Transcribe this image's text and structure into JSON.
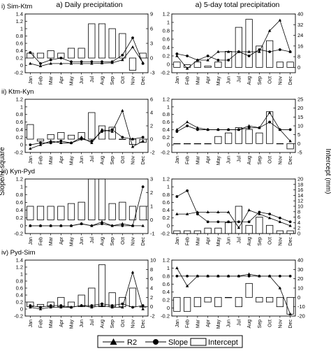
{
  "figure": {
    "column_titles": [
      "a) Daily precipitation",
      "a) 5-day total precipitation"
    ],
    "left_axis_label": "Slope/R-square",
    "right_axis_label": "Intercept (mm)",
    "months": [
      "Jan",
      "Feb",
      "Mar",
      "Apr",
      "May",
      "Jun",
      "Jul",
      "Aug",
      "Sep",
      "Oct",
      "Nov",
      "Dec"
    ],
    "legend": {
      "r2": "R2",
      "slope": "Slope",
      "intercept": "Intercept"
    }
  },
  "chart_data": [
    {
      "type": "bar+line",
      "row_label": "i) Sim-Ktm",
      "column": "a) Daily precipitation",
      "left_ticks": [
        "1.4",
        "1.2",
        "1",
        "0.8",
        "0.6",
        "0.4",
        "0.2",
        "0",
        "-0.2"
      ],
      "left_range": [
        -0.2,
        1.4
      ],
      "right_ticks": [
        "9",
        "6",
        "3",
        "0",
        "-3"
      ],
      "right_range": [
        -3,
        9
      ],
      "intercept": [
        1,
        1,
        1.5,
        1,
        2,
        2,
        7,
        7,
        6,
        5,
        -2.5,
        1
      ],
      "r2": [
        0.05,
        -0.02,
        0.05,
        0.05,
        0.05,
        0.05,
        0.05,
        0.06,
        0.07,
        0.15,
        0.5,
        0.07
      ],
      "slope": [
        0.35,
        0.05,
        0.15,
        0.2,
        0.1,
        0.1,
        0.1,
        0.1,
        0.1,
        0.28,
        0.75,
        0.05
      ]
    },
    {
      "type": "bar+line",
      "row_label": "i) Sim-Ktm",
      "column": "a) 5-day total precipitation",
      "left_ticks": [
        "1.2",
        "1",
        "0.8",
        "0.6",
        "0.4",
        "0.2",
        "0",
        "-0.2"
      ],
      "left_range": [
        -0.2,
        1.2
      ],
      "right_ticks": [
        "40",
        "32",
        "24",
        "16",
        "8",
        "0"
      ],
      "right_range": [
        -4,
        40
      ],
      "intercept": [
        4,
        2,
        4,
        1,
        4,
        12,
        30,
        36,
        16,
        20,
        4,
        4
      ],
      "r2": [
        0.2,
        -0.1,
        0.1,
        0.1,
        0.3,
        0.3,
        0.3,
        0.3,
        0.3,
        0.8,
        1.05,
        0.3
      ],
      "slope": [
        0.25,
        0.2,
        0.1,
        0.2,
        0.1,
        0.1,
        0.3,
        0.2,
        0.35,
        0.3,
        0.35,
        0.3
      ]
    },
    {
      "type": "bar+line",
      "row_label": "ii) Ktm-Kyn",
      "column": "a) Daily precipitation",
      "left_ticks": [
        "1.2",
        "1",
        "0.8",
        "0.6",
        "0.4",
        "0.2",
        "0",
        "-0.2"
      ],
      "left_range": [
        -0.2,
        1.2
      ],
      "right_ticks": [
        "6",
        "4",
        "2",
        "0",
        "-2"
      ],
      "right_range": [
        -2,
        6
      ],
      "intercept": [
        2.2,
        -0.3,
        0.7,
        1,
        0.6,
        1,
        4,
        2,
        1.8,
        0,
        -0.8,
        -0.5
      ],
      "r2": [
        -0.1,
        0,
        0.1,
        0.05,
        0.05,
        0.2,
        0.05,
        0.4,
        0.35,
        0.9,
        -0.05,
        0.1
      ],
      "slope": [
        0,
        0.05,
        0.05,
        0.1,
        0.05,
        0.15,
        0.1,
        0.35,
        0.4,
        0.2,
        0.15,
        0.2
      ]
    },
    {
      "type": "bar+line",
      "row_label": "ii) Ktm-Kyn",
      "column": "a) 5-day total precipitation",
      "left_ticks": [
        "1.2",
        "1",
        "0.8",
        "0.6",
        "0.4",
        "0.2",
        "0",
        "-0.2"
      ],
      "left_range": [
        -0.2,
        1.2
      ],
      "right_ticks": [
        "25",
        "20",
        "15",
        "10",
        "5",
        "0",
        "-5"
      ],
      "right_range": [
        -5,
        25
      ],
      "intercept": [
        0,
        0,
        0,
        0,
        4,
        6,
        9,
        8,
        6,
        18,
        0,
        -3
      ],
      "r2": [
        0.4,
        0.6,
        0.45,
        0.4,
        0.4,
        0.4,
        0.4,
        0.5,
        0.45,
        0.85,
        0.4,
        0.1
      ],
      "slope": [
        0.35,
        0.5,
        0.4,
        0.4,
        0.4,
        0.4,
        0.4,
        0.45,
        0.45,
        0.6,
        0.4,
        0.4
      ]
    },
    {
      "type": "bar+line",
      "row_label": "iii) Kyn-Pyd",
      "column": "a) Daily precipitation",
      "left_ticks": [
        "1.2",
        "1",
        "0.8",
        "0.6",
        "0.4",
        "0.2",
        "0",
        "-0.2"
      ],
      "left_range": [
        -0.2,
        1.2
      ],
      "right_ticks": [
        "3",
        "2",
        "1",
        "0",
        "-1"
      ],
      "right_range": [
        -1,
        3
      ],
      "intercept": [
        1,
        1,
        1,
        1,
        1.2,
        1.3,
        3,
        3,
        1.2,
        1.3,
        1,
        1
      ],
      "r2": [
        0,
        0,
        0,
        0,
        0,
        0.05,
        0,
        0.1,
        0,
        0.05,
        0,
        0
      ],
      "slope": [
        0,
        0,
        0,
        0,
        0,
        0.05,
        0,
        0.05,
        0,
        0,
        0,
        1
      ]
    },
    {
      "type": "bar+line",
      "row_label": "iii) Kyn-Pyd",
      "column": "a) 5-day total precipitation",
      "left_ticks": [
        "1.2",
        "1",
        "0.8",
        "0.6",
        "0.4",
        "0.2",
        "0",
        "-0.2"
      ],
      "left_range": [
        -0.2,
        1.2
      ],
      "right_ticks": [
        "20",
        "18",
        "16",
        "14",
        "12",
        "10",
        "8",
        "6",
        "4",
        "2",
        "0"
      ],
      "right_range": [
        0,
        20
      ],
      "intercept": [
        1,
        1,
        1,
        2,
        2,
        4,
        10,
        3,
        6,
        3,
        1,
        1
      ],
      "r2": [
        0.3,
        0.3,
        0.35,
        0.35,
        0.35,
        0.35,
        -0.05,
        0.4,
        0.3,
        0.2,
        0.1,
        0
      ],
      "slope": [
        0.75,
        0.9,
        0.3,
        0.1,
        0.1,
        0.1,
        0.1,
        0.1,
        0.35,
        0.3,
        0.2,
        0.1
      ]
    },
    {
      "type": "bar+line",
      "row_label": "iv) Pyd-Sim",
      "column": "a) Daily precipitation",
      "left_ticks": [
        "1.4",
        "1.2",
        "1",
        "0.8",
        "0.6",
        "0.4",
        "0.2",
        "0",
        "-0.2"
      ],
      "left_range": [
        -0.2,
        1.4
      ],
      "right_ticks": [
        "10",
        "8",
        "6",
        "4",
        "2",
        "0",
        "-2"
      ],
      "right_range": [
        -2,
        10
      ],
      "intercept": [
        1,
        0.5,
        1,
        2,
        1,
        2.5,
        4,
        9,
        3,
        2,
        4,
        0
      ],
      "r2": [
        0.05,
        0,
        0.05,
        0.05,
        0.05,
        0.1,
        0.05,
        0.1,
        0.05,
        0.05,
        1.05,
        0
      ],
      "slope": [
        0.1,
        0.05,
        0.1,
        0.1,
        0.05,
        0.1,
        0.1,
        0.15,
        0.1,
        0.15,
        0.05,
        0.1
      ]
    },
    {
      "type": "bar+line",
      "row_label": "iv) Pyd-Sim",
      "column": "a) 5-day total precipitation",
      "left_ticks": [
        "1.2",
        "1",
        "0.8",
        "0.6",
        "0.4",
        "0.2",
        "0",
        "-0.2"
      ],
      "left_range": [
        -0.2,
        1.2
      ],
      "right_ticks": [
        "40",
        "30",
        "20",
        "10",
        "0",
        "-10",
        "-20"
      ],
      "right_range": [
        -20,
        40
      ],
      "intercept": [
        -15,
        -15,
        -10,
        -5,
        -10,
        0,
        -10,
        15,
        -5,
        -5,
        -10,
        -18
      ],
      "r2": [
        1,
        0.55,
        0.8,
        0.8,
        0.8,
        0.8,
        0.8,
        0.85,
        0.8,
        0.8,
        0.5,
        -0.15
      ],
      "slope": [
        0.8,
        0.8,
        0.8,
        0.8,
        0.8,
        0.8,
        0.8,
        0.8,
        0.8,
        0.8,
        0.8,
        0.8
      ]
    }
  ]
}
